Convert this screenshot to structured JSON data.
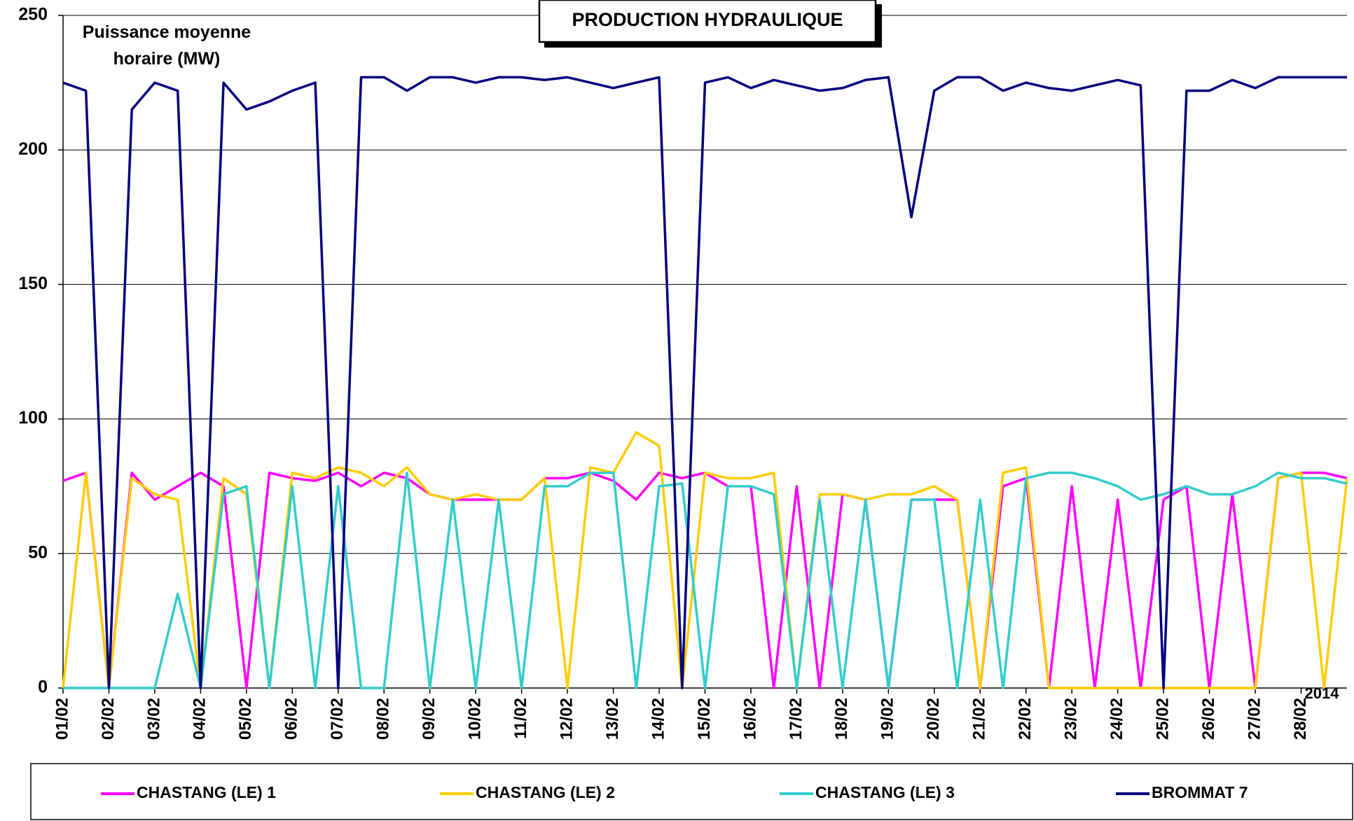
{
  "chart_data": {
    "type": "line",
    "title": "PRODUCTION HYDRAULIQUE",
    "y_label": "Puissance moyenne horaire (MW)",
    "annotation": "2014",
    "x": [
      0,
      0.5,
      1,
      1.5,
      2,
      2.5,
      3,
      3.5,
      4,
      4.5,
      5,
      5.5,
      6,
      6.5,
      7,
      7.5,
      8,
      8.5,
      9,
      9.5,
      10,
      10.5,
      11,
      11.5,
      12,
      12.5,
      13,
      13.5,
      14,
      14.5,
      15,
      15.5,
      16,
      16.5,
      17,
      17.5,
      18,
      18.5,
      19,
      19.5,
      20,
      20.5,
      21,
      21.5,
      22,
      22.5,
      23,
      23.5,
      24,
      24.5,
      25,
      25.5,
      26,
      26.5,
      27,
      27.5,
      28
    ],
    "xlim": [
      0,
      28
    ],
    "xticks": [
      {
        "value": 0,
        "label": "01/02"
      },
      {
        "value": 1,
        "label": "02/02"
      },
      {
        "value": 2,
        "label": "03/02"
      },
      {
        "value": 3,
        "label": "04/02"
      },
      {
        "value": 4,
        "label": "05/02"
      },
      {
        "value": 5,
        "label": "06/02"
      },
      {
        "value": 6,
        "label": "07/02"
      },
      {
        "value": 7,
        "label": "08/02"
      },
      {
        "value": 8,
        "label": "09/02"
      },
      {
        "value": 9,
        "label": "10/02"
      },
      {
        "value": 10,
        "label": "11/02"
      },
      {
        "value": 11,
        "label": "12/02"
      },
      {
        "value": 12,
        "label": "13/02"
      },
      {
        "value": 13,
        "label": "14/02"
      },
      {
        "value": 14,
        "label": "15/02"
      },
      {
        "value": 15,
        "label": "16/02"
      },
      {
        "value": 16,
        "label": "17/02"
      },
      {
        "value": 17,
        "label": "18/02"
      },
      {
        "value": 18,
        "label": "19/02"
      },
      {
        "value": 19,
        "label": "20/02"
      },
      {
        "value": 20,
        "label": "21/02"
      },
      {
        "value": 21,
        "label": "22/02"
      },
      {
        "value": 22,
        "label": "23/02"
      },
      {
        "value": 23,
        "label": "24/02"
      },
      {
        "value": 24,
        "label": "25/02"
      },
      {
        "value": 25,
        "label": "26/02"
      },
      {
        "value": 26,
        "label": "27/02"
      },
      {
        "value": 27,
        "label": "28/02"
      }
    ],
    "ylim": [
      0,
      250
    ],
    "yticks": [
      0,
      50,
      100,
      150,
      200,
      250
    ],
    "grid": true,
    "legend": "bottom",
    "series": [
      {
        "name": "CHASTANG (LE) 1",
        "color": "#ff00ff",
        "values": [
          77,
          80,
          0,
          80,
          70,
          75,
          80,
          75,
          0,
          80,
          78,
          77,
          80,
          75,
          80,
          78,
          72,
          70,
          70,
          70,
          70,
          78,
          78,
          80,
          77,
          70,
          80,
          78,
          80,
          75,
          75,
          0,
          75,
          0,
          72,
          70,
          0,
          70,
          70,
          70,
          0,
          75,
          78,
          0,
          75,
          0,
          70,
          0,
          70,
          75,
          0,
          72,
          0,
          78,
          80,
          80,
          78
        ]
      },
      {
        "name": "CHASTANG (LE) 2",
        "color": "#ffcc00",
        "values": [
          0,
          80,
          0,
          78,
          72,
          70,
          0,
          78,
          72,
          0,
          80,
          78,
          82,
          80,
          75,
          82,
          72,
          70,
          72,
          70,
          70,
          78,
          0,
          82,
          80,
          95,
          90,
          0,
          80,
          78,
          78,
          80,
          0,
          72,
          72,
          70,
          72,
          72,
          75,
          70,
          0,
          80,
          82,
          0,
          0,
          0,
          0,
          0,
          0,
          0,
          0,
          0,
          0,
          78,
          80,
          0,
          78
        ]
      },
      {
        "name": "CHASTANG (LE) 3",
        "color": "#33cccc",
        "values": [
          0,
          0,
          0,
          0,
          0,
          35,
          0,
          72,
          75,
          0,
          75,
          0,
          75,
          0,
          0,
          80,
          0,
          70,
          0,
          70,
          0,
          75,
          75,
          80,
          80,
          0,
          75,
          76,
          0,
          75,
          75,
          72,
          0,
          70,
          0,
          70,
          0,
          70,
          70,
          0,
          70,
          0,
          78,
          80,
          80,
          78,
          75,
          70,
          72,
          75,
          72,
          72,
          75,
          80,
          78,
          78,
          76
        ]
      },
      {
        "name": "BROMMAT 7",
        "color": "#000080",
        "values": [
          225,
          222,
          0,
          215,
          225,
          222,
          0,
          225,
          215,
          218,
          222,
          225,
          0,
          227,
          227,
          222,
          227,
          227,
          225,
          227,
          227,
          226,
          227,
          225,
          223,
          225,
          227,
          0,
          225,
          227,
          223,
          226,
          224,
          222,
          223,
          226,
          227,
          175,
          222,
          227,
          227,
          222,
          225,
          223,
          222,
          224,
          226,
          224,
          0,
          222,
          222,
          226,
          223,
          227,
          227,
          227,
          227
        ]
      }
    ]
  }
}
